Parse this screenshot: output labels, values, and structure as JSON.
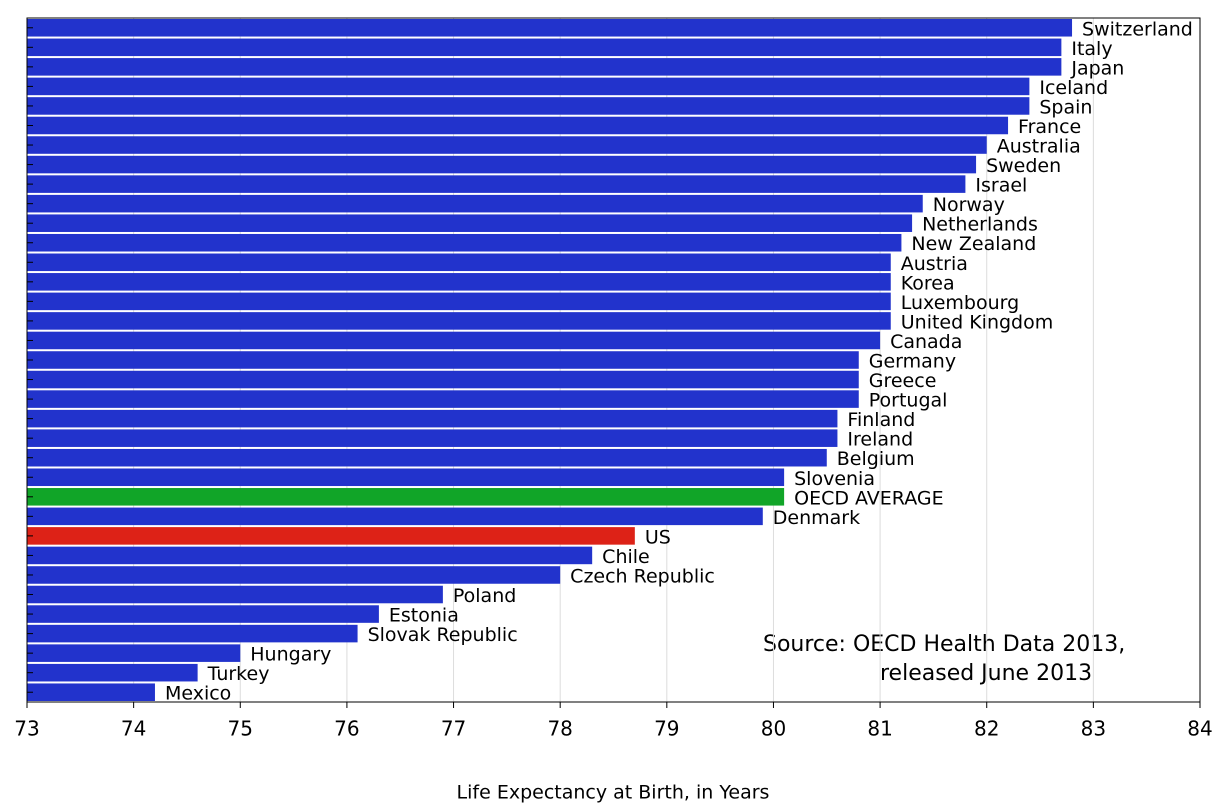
{
  "chart_data": {
    "type": "hbar",
    "categories": [
      "Switzerland",
      "Italy",
      "Japan",
      "Iceland",
      "Spain",
      "France",
      "Australia",
      "Sweden",
      "Israel",
      "Norway",
      "Netherlands",
      "New Zealand",
      "Austria",
      "Korea",
      "Luxembourg",
      "United Kingdom",
      "Canada",
      "Germany",
      "Greece",
      "Portugal",
      "Finland",
      "Ireland",
      "Belgium",
      "Slovenia",
      "OECD AVERAGE",
      "Denmark",
      "US",
      "Chile",
      "Czech Republic",
      "Poland",
      "Estonia",
      "Slovak Republic",
      "Hungary",
      "Turkey",
      "Mexico"
    ],
    "values": [
      82.8,
      82.7,
      82.7,
      82.4,
      82.4,
      82.2,
      82.0,
      81.9,
      81.8,
      81.4,
      81.3,
      81.2,
      81.1,
      81.1,
      81.1,
      81.1,
      81.0,
      80.8,
      80.8,
      80.8,
      80.6,
      80.6,
      80.5,
      80.1,
      80.1,
      79.9,
      78.7,
      78.3,
      78.0,
      76.9,
      76.3,
      76.1,
      75.0,
      74.6,
      74.2
    ],
    "colors": [
      "#2233cc",
      "#2233cc",
      "#2233cc",
      "#2233cc",
      "#2233cc",
      "#2233cc",
      "#2233cc",
      "#2233cc",
      "#2233cc",
      "#2233cc",
      "#2233cc",
      "#2233cc",
      "#2233cc",
      "#2233cc",
      "#2233cc",
      "#2233cc",
      "#2233cc",
      "#2233cc",
      "#2233cc",
      "#2233cc",
      "#2233cc",
      "#2233cc",
      "#2233cc",
      "#2233cc",
      "#11a528",
      "#2233cc",
      "#dd2217",
      "#2233cc",
      "#2233cc",
      "#2233cc",
      "#2233cc",
      "#2233cc",
      "#2233cc",
      "#2233cc",
      "#2233cc"
    ],
    "x_label": "Life Expectancy at Birth, in Years",
    "annotation": [
      "Source:  OECD Health Data 2013,",
      "released June 2013"
    ],
    "xlim": [
      73,
      84
    ],
    "xticks": [
      73,
      74,
      75,
      76,
      77,
      78,
      79,
      80,
      81,
      82,
      83,
      84
    ],
    "grid": true
  }
}
